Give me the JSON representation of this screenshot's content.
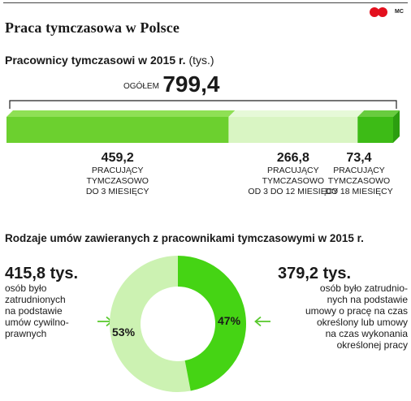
{
  "header": {
    "title": "Praca tymczasowa w Polsce",
    "logo_text": "MC"
  },
  "colors": {
    "seg1": "#6cd02f",
    "seg2": "#d9f5c3",
    "seg3": "#3dbb16",
    "donut_light": "#ccf2b2",
    "donut_dark": "#45d414"
  },
  "chart_data": [
    {
      "type": "bar",
      "orientation": "horizontal-stacked",
      "title": "Pracownicy tymczasowi w 2015 r.",
      "unit": "(tys.)",
      "total_label": "OGÓŁEM",
      "total_value": "799,4",
      "segments": [
        {
          "value": 459.2,
          "value_label": "459,2",
          "lines": [
            "PRACUJĄCY",
            "TYMCZASOWO",
            "DO 3 MIESIĘCY"
          ]
        },
        {
          "value": 266.8,
          "value_label": "266,8",
          "lines": [
            "PRACUJĄCY",
            "TYMCZASOWO",
            "OD 3 DO 12 MIESIĘCY"
          ]
        },
        {
          "value": 73.4,
          "value_label": "73,4",
          "lines": [
            "PRACUJĄCY",
            "TYMCZASOWO",
            "DO 18 MIESIĘCY"
          ]
        }
      ]
    },
    {
      "type": "pie",
      "variant": "donut",
      "title": "Rodzaje umów zawieranych z pracownikami tymczasowymi w 2015 r.",
      "slices": [
        {
          "value": 53,
          "pct_label": "53%",
          "amount": "415,8 tys.",
          "lines": [
            "osób było",
            "zatrudnionych",
            "na podstawie",
            "umów cywilno-",
            "prawnych"
          ]
        },
        {
          "value": 47,
          "pct_label": "47%",
          "amount": "379,2 tys.",
          "lines": [
            "osób było zatrudnio-",
            "nych na podstawie",
            "umowy o pracę na czas",
            "określony lub umowy",
            "na czas wykonania",
            "określonej pracy"
          ]
        }
      ]
    }
  ]
}
